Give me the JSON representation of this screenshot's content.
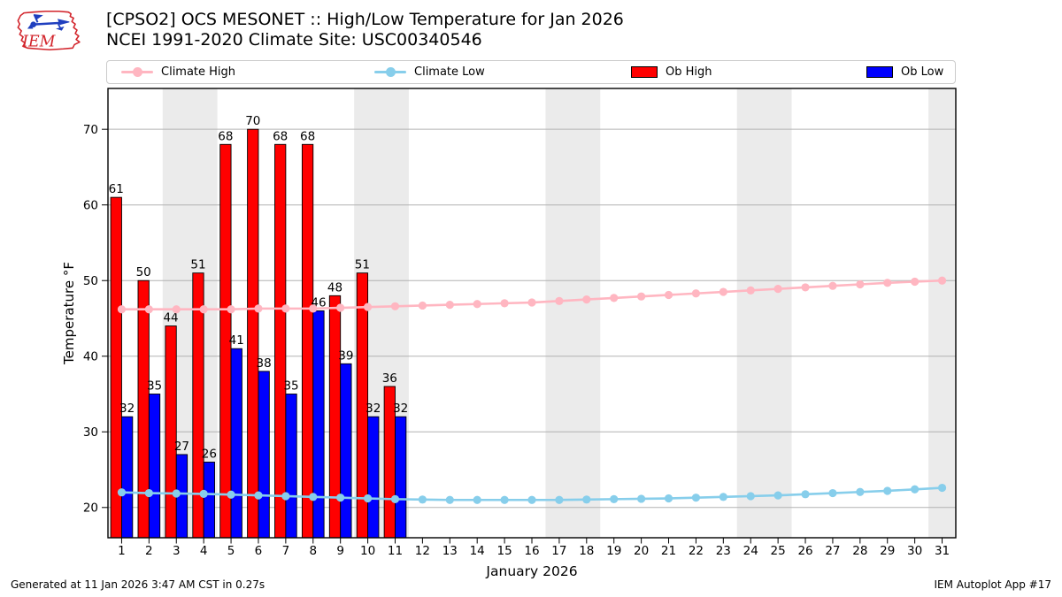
{
  "logo": {
    "text": "IEM"
  },
  "header": {
    "title_line1": "[CPSO2] OCS MESONET :: High/Low Temperature for Jan 2026",
    "title_line2": "NCEI 1991-2020 Climate Site: USC00340546"
  },
  "legend": {
    "items": [
      {
        "label": "Climate High",
        "marker": "line-dot",
        "color": "#ffb6c1"
      },
      {
        "label": "Climate Low",
        "marker": "line-dot",
        "color": "#87ceeb"
      },
      {
        "label": "Ob High",
        "marker": "rect",
        "color": "#ff0000"
      },
      {
        "label": "Ob Low",
        "marker": "rect",
        "color": "#0000ff"
      }
    ]
  },
  "chart_data": {
    "type": "bar",
    "xlabel": "January 2026",
    "ylabel": "Temperature °F",
    "x_days": [
      1,
      2,
      3,
      4,
      5,
      6,
      7,
      8,
      9,
      10,
      11,
      12,
      13,
      14,
      15,
      16,
      17,
      18,
      19,
      20,
      21,
      22,
      23,
      24,
      25,
      26,
      27,
      28,
      29,
      30,
      31
    ],
    "ylim": [
      16,
      75.4
    ],
    "yticks": [
      20,
      30,
      40,
      50,
      60,
      70
    ],
    "grid": "horizontal",
    "legend_position": "top",
    "weekend_bands_days": [
      [
        2.5,
        4.5
      ],
      [
        9.5,
        11.5
      ],
      [
        16.5,
        18.5
      ],
      [
        23.5,
        25.5
      ],
      [
        30.5,
        31.5
      ]
    ],
    "band_color": "#ebebeb",
    "series": [
      {
        "name": "Climate High",
        "type": "line",
        "color": "#ffb6c1",
        "values": [
          46.2,
          46.2,
          46.2,
          46.2,
          46.2,
          46.3,
          46.3,
          46.3,
          46.4,
          46.5,
          46.6,
          46.7,
          46.8,
          46.9,
          47.0,
          47.1,
          47.3,
          47.5,
          47.7,
          47.9,
          48.1,
          48.3,
          48.5,
          48.7,
          48.9,
          49.1,
          49.3,
          49.5,
          49.7,
          49.85,
          50.0
        ]
      },
      {
        "name": "Climate Low",
        "type": "line",
        "color": "#87ceeb",
        "values": [
          22.0,
          21.9,
          21.85,
          21.8,
          21.7,
          21.6,
          21.5,
          21.4,
          21.3,
          21.2,
          21.1,
          21.05,
          21.0,
          21.0,
          21.0,
          21.0,
          21.0,
          21.05,
          21.1,
          21.15,
          21.2,
          21.3,
          21.4,
          21.5,
          21.6,
          21.75,
          21.9,
          22.05,
          22.2,
          22.4,
          22.6
        ]
      },
      {
        "name": "Ob High",
        "type": "bar",
        "color": "#ff0000",
        "days": [
          1,
          2,
          3,
          4,
          5,
          6,
          7,
          8,
          9,
          10,
          11
        ],
        "values": [
          61,
          50,
          44,
          51,
          68,
          70,
          68,
          68,
          48,
          51,
          36
        ]
      },
      {
        "name": "Ob Low",
        "type": "bar",
        "color": "#0000ff",
        "days": [
          1,
          2,
          3,
          4,
          5,
          6,
          7,
          8,
          9,
          10,
          11
        ],
        "values": [
          32,
          35,
          27,
          26,
          41,
          38,
          35,
          46,
          39,
          32,
          32
        ]
      }
    ]
  },
  "footer": {
    "left": "Generated at 11 Jan 2026 3:47 AM CST in 0.27s",
    "right": "IEM Autoplot App #17"
  }
}
